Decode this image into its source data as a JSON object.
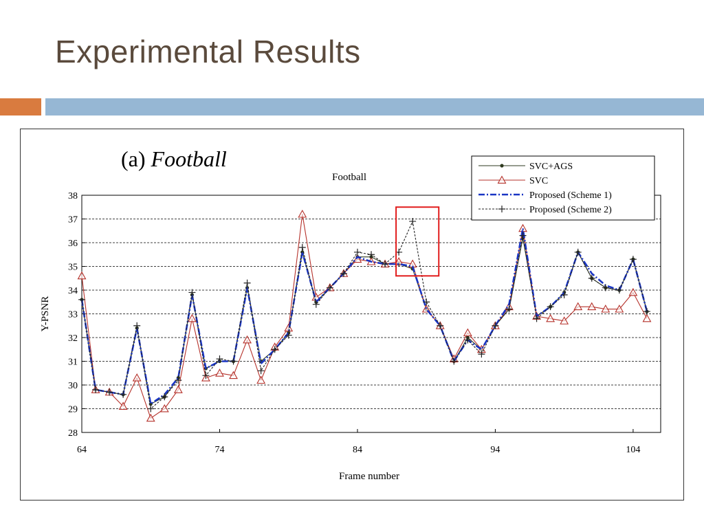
{
  "slide": {
    "title": "Experimental Results"
  },
  "figure": {
    "caption_prefix": "(a)",
    "caption_name": "Football"
  },
  "chart_data": {
    "type": "line",
    "title": "Football",
    "xlabel": "Frame number",
    "ylabel": "Y-PSNR",
    "xlim": [
      64,
      106
    ],
    "ylim": [
      28,
      38
    ],
    "x_ticks": [
      64,
      74,
      84,
      94,
      104
    ],
    "y_ticks": [
      28,
      29,
      30,
      31,
      32,
      33,
      34,
      35,
      36,
      37,
      38
    ],
    "grid": "horizontal-dashed",
    "legend_position": "top-right",
    "x": [
      64,
      65,
      66,
      67,
      68,
      69,
      70,
      71,
      72,
      73,
      74,
      75,
      76,
      77,
      78,
      79,
      80,
      81,
      82,
      83,
      84,
      85,
      86,
      87,
      88,
      89,
      90,
      91,
      92,
      93,
      94,
      95,
      96,
      97,
      98,
      99,
      100,
      101,
      102,
      103,
      104,
      105
    ],
    "series": [
      {
        "name": "SVC+AGS",
        "color": "#2e3a1f",
        "marker": "dot",
        "values": [
          33.6,
          29.8,
          29.7,
          29.6,
          32.4,
          29.2,
          29.5,
          30.3,
          33.8,
          30.7,
          31.0,
          31.0,
          34.1,
          31.0,
          31.5,
          32.2,
          35.6,
          33.5,
          34.1,
          34.7,
          35.4,
          35.4,
          35.1,
          35.1,
          34.9,
          33.2,
          32.5,
          31.0,
          32.0,
          31.5,
          32.5,
          33.2,
          36.2,
          32.9,
          33.3,
          33.9,
          35.6,
          34.5,
          34.1,
          34.0,
          35.3,
          33.1
        ]
      },
      {
        "name": "SVC",
        "color": "#b5312a",
        "marker": "triangle",
        "values": [
          34.6,
          29.8,
          29.7,
          29.1,
          30.3,
          28.6,
          29.0,
          29.8,
          32.8,
          30.3,
          30.5,
          30.4,
          31.9,
          30.2,
          31.6,
          32.4,
          37.2,
          33.7,
          34.1,
          34.7,
          35.3,
          35.2,
          35.1,
          35.2,
          35.1,
          33.2,
          32.5,
          31.1,
          32.2,
          31.5,
          32.5,
          33.3,
          36.6,
          32.9,
          32.8,
          32.7,
          33.3,
          33.3,
          33.2,
          33.2,
          33.9,
          32.8
        ]
      },
      {
        "name": "Proposed (Scheme 1)",
        "color": "#1a35c4",
        "marker": "none",
        "values": [
          33.6,
          29.8,
          29.7,
          29.6,
          32.4,
          29.2,
          29.6,
          30.3,
          33.8,
          30.7,
          31.0,
          31.0,
          34.1,
          30.9,
          31.5,
          32.2,
          35.6,
          33.5,
          34.1,
          34.7,
          35.4,
          35.2,
          35.1,
          35.1,
          35.0,
          33.2,
          32.5,
          31.0,
          31.9,
          31.5,
          32.5,
          33.4,
          36.6,
          32.9,
          33.3,
          33.9,
          35.6,
          34.7,
          34.2,
          34.0,
          35.3,
          33.1
        ]
      },
      {
        "name": "Proposed (Scheme 2)",
        "color": "#222222",
        "marker": "plus",
        "values": [
          33.6,
          29.8,
          29.7,
          29.6,
          32.5,
          29.0,
          29.5,
          30.2,
          33.9,
          30.4,
          31.1,
          31.0,
          34.3,
          30.6,
          31.5,
          32.1,
          35.8,
          33.4,
          34.1,
          34.7,
          35.6,
          35.5,
          35.1,
          35.6,
          36.9,
          33.5,
          32.5,
          31.0,
          31.9,
          31.3,
          32.5,
          33.2,
          36.3,
          32.8,
          33.3,
          33.8,
          35.6,
          34.5,
          34.1,
          34.0,
          35.3,
          33.1
        ]
      }
    ],
    "annotation": {
      "type": "highlight-box",
      "color": "#e11b1b",
      "x_range": [
        86.8,
        89.9
      ],
      "y_range": [
        34.6,
        37.5
      ]
    }
  }
}
